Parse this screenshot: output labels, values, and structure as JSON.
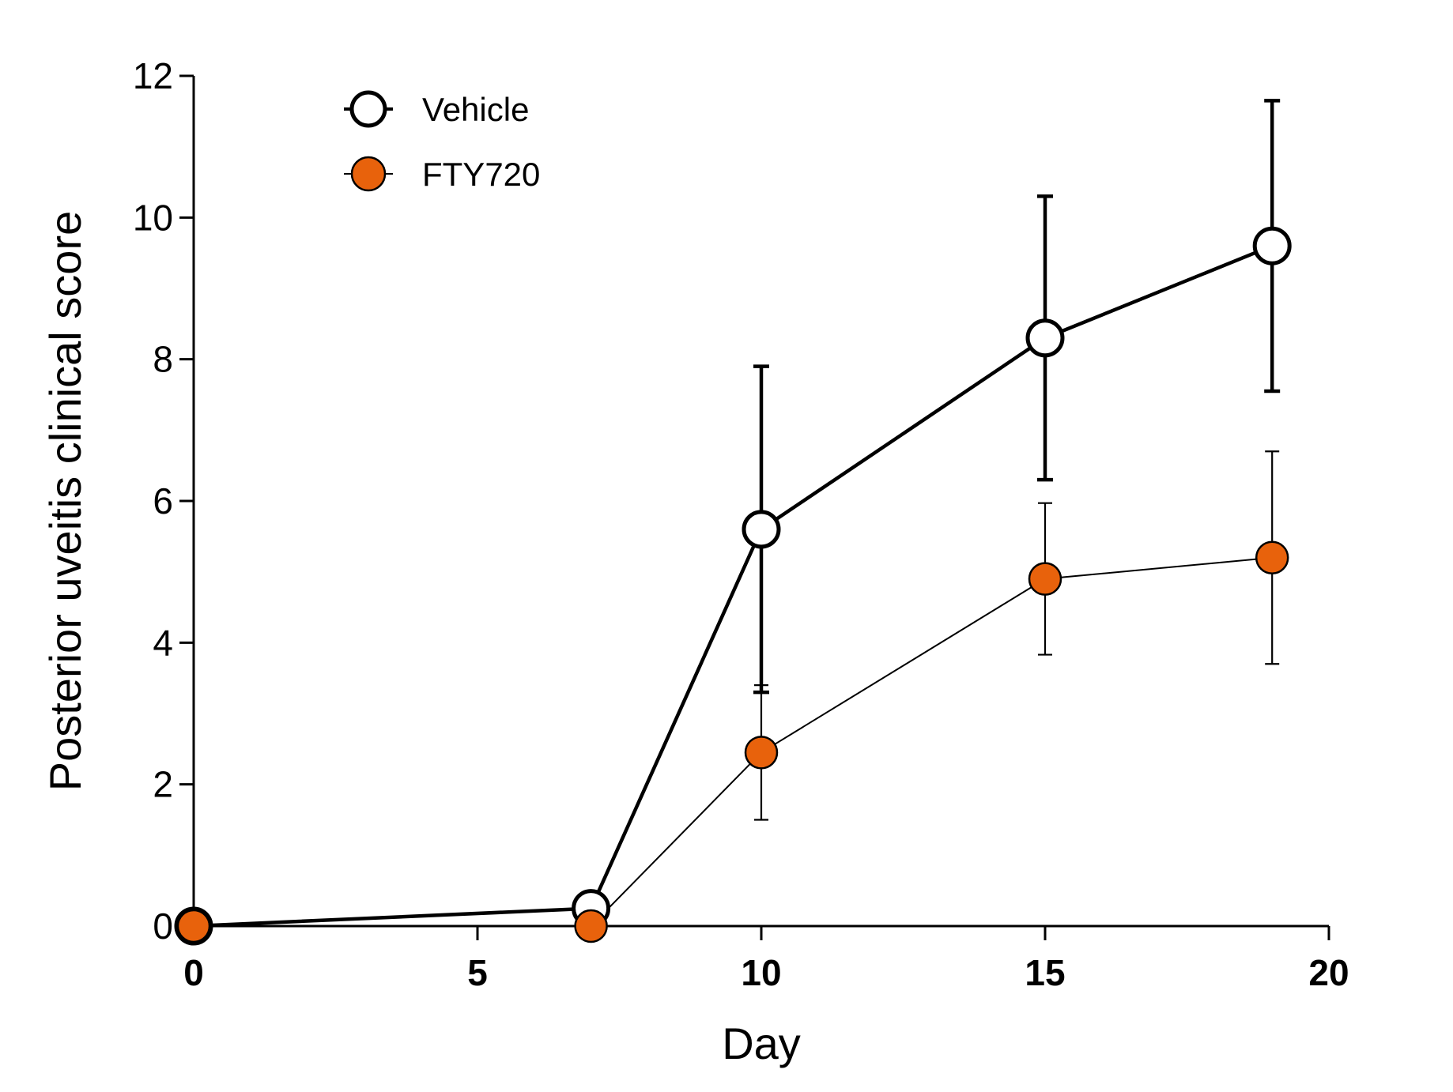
{
  "chart_data": {
    "type": "line",
    "xlabel": "Day",
    "ylabel": "Posterior uveitis clinical score",
    "xlim": [
      0,
      20
    ],
    "ylim": [
      0,
      12
    ],
    "xticks": [
      0,
      5,
      10,
      15,
      20
    ],
    "yticks": [
      0,
      2,
      4,
      6,
      8,
      10,
      12
    ],
    "xtick_labels": [
      "0",
      "5",
      "10",
      "15",
      "20"
    ],
    "ytick_labels": [
      "0",
      "2",
      "4",
      "6",
      "8",
      "10",
      "12"
    ],
    "grid": false,
    "legend_position": "top-left",
    "series": [
      {
        "name": "Vehicle",
        "marker": "open-circle",
        "line_color": "#000000",
        "marker_fill": "#ffffff",
        "x": [
          0,
          7,
          10,
          15,
          19
        ],
        "y": [
          0,
          0.25,
          5.6,
          8.3,
          9.6
        ],
        "error": [
          0,
          0,
          2.3,
          2.0,
          2.05
        ]
      },
      {
        "name": "FTY720",
        "marker": "filled-circle",
        "line_color": "#000000",
        "marker_fill": "#E8620C",
        "x": [
          0,
          7,
          10,
          15,
          19
        ],
        "y": [
          0,
          0,
          2.45,
          4.9,
          5.2
        ],
        "error": [
          0,
          0,
          0.95,
          1.07,
          1.5
        ]
      }
    ]
  }
}
